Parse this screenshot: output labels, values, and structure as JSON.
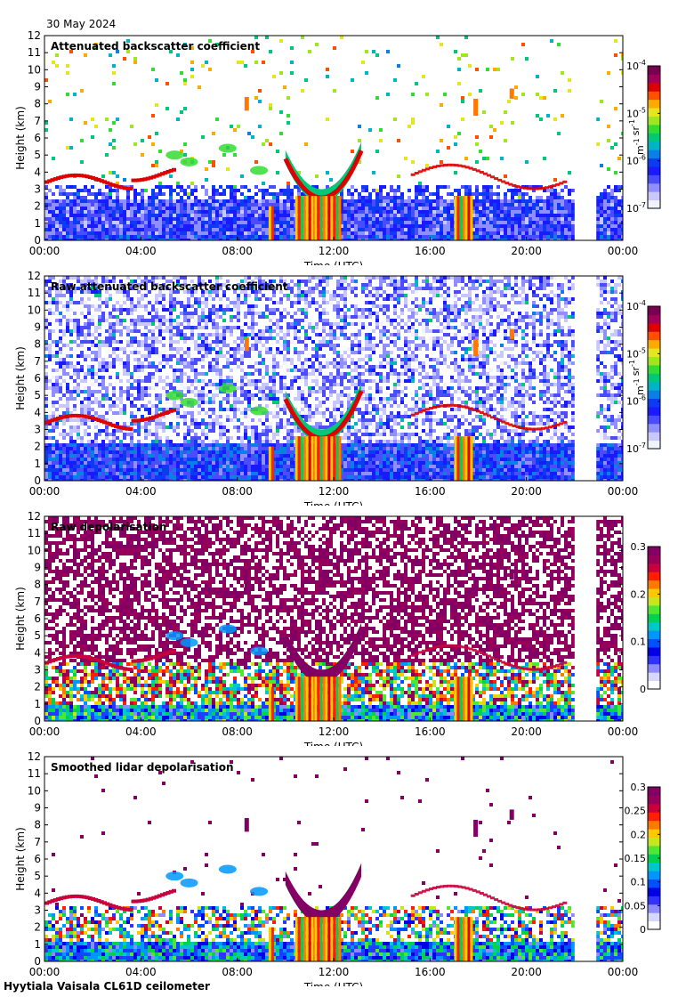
{
  "header": {
    "date": "30 May 2024"
  },
  "footer": {
    "site": "Hyytiala Vaisala CL61D ceilometer"
  },
  "chart_data": [
    {
      "type": "heatmap",
      "title": "Attenuated backscatter coefficient",
      "xlabel": "Time (UTC)",
      "ylabel": "Height (km)",
      "xticks": [
        "00:00",
        "04:00",
        "08:00",
        "12:00",
        "16:00",
        "20:00",
        "00:00"
      ],
      "xlim": [
        0,
        24
      ],
      "ylim": [
        0,
        12
      ],
      "yticks": [
        0,
        1,
        2,
        3,
        4,
        5,
        6,
        7,
        8,
        9,
        10,
        11,
        12
      ],
      "colorbar": {
        "scale": "log",
        "range": [
          1e-07,
          0.0001
        ],
        "ticks": [
          "10^-7",
          "10^-6",
          "10^-5",
          "10^-4"
        ],
        "tick_values": [
          1e-07,
          1e-06,
          1e-05,
          0.0001
        ],
        "units": "m^-1 sr^-1"
      },
      "no_data_interval": [
        22.0,
        22.9
      ]
    },
    {
      "type": "heatmap",
      "title": "Raw attenuated backscatter coefficient",
      "xlabel": "Time (UTC)",
      "ylabel": "Height (km)",
      "xticks": [
        "00:00",
        "04:00",
        "08:00",
        "12:00",
        "16:00",
        "20:00",
        "00:00"
      ],
      "xlim": [
        0,
        24
      ],
      "ylim": [
        0,
        12
      ],
      "yticks": [
        0,
        1,
        2,
        3,
        4,
        5,
        6,
        7,
        8,
        9,
        10,
        11,
        12
      ],
      "colorbar": {
        "scale": "log",
        "range": [
          1e-07,
          0.0001
        ],
        "ticks": [
          "10^-7",
          "10^-6",
          "10^-5",
          "10^-4"
        ],
        "tick_values": [
          1e-07,
          1e-06,
          1e-05,
          0.0001
        ],
        "units": "m^-1 sr^-1"
      },
      "no_data_interval": [
        22.0,
        22.9
      ]
    },
    {
      "type": "heatmap",
      "title": "Raw depolarisation",
      "xlabel": "Time (UTC)",
      "ylabel": "Height (km)",
      "xticks": [
        "00:00",
        "04:00",
        "08:00",
        "12:00",
        "16:00",
        "20:00",
        "00:00"
      ],
      "xlim": [
        0,
        24
      ],
      "ylim": [
        0,
        12
      ],
      "yticks": [
        0,
        1,
        2,
        3,
        4,
        5,
        6,
        7,
        8,
        9,
        10,
        11,
        12
      ],
      "colorbar": {
        "scale": "linear",
        "range": [
          0,
          0.3
        ],
        "ticks": [
          "0",
          "0.1",
          "0.2",
          "0.3"
        ],
        "tick_values": [
          0,
          0.1,
          0.2,
          0.3
        ]
      },
      "no_data_interval": [
        22.0,
        22.9
      ]
    },
    {
      "type": "heatmap",
      "title": "Smoothed lidar depolarisation",
      "xlabel": "Time (UTC)",
      "ylabel": "Height (km)",
      "xticks": [
        "00:00",
        "04:00",
        "08:00",
        "12:00",
        "16:00",
        "20:00",
        "00:00"
      ],
      "xlim": [
        0,
        24
      ],
      "ylim": [
        0,
        12
      ],
      "yticks": [
        0,
        1,
        2,
        3,
        4,
        5,
        6,
        7,
        8,
        9,
        10,
        11,
        12
      ],
      "colorbar": {
        "scale": "linear",
        "range": [
          0,
          0.3
        ],
        "ticks": [
          "0",
          "0.05",
          "0.1",
          "0.15",
          "0.2",
          "0.25",
          "0.3"
        ],
        "tick_values": [
          0,
          0.05,
          0.1,
          0.15,
          0.2,
          0.25,
          0.3
        ]
      },
      "no_data_interval": [
        22.0,
        22.9
      ]
    }
  ]
}
